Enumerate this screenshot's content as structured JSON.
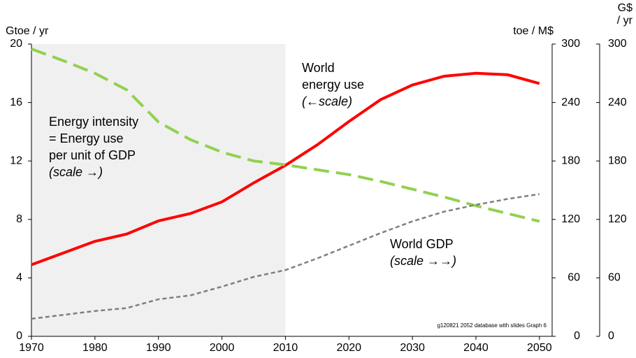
{
  "chart_data": {
    "type": "line",
    "y_label": "Gtoe / yr",
    "y2_label": "toe / M$",
    "y3_label_lines": [
      "G$",
      "/ yr"
    ],
    "x": [
      1970,
      1975,
      1980,
      1985,
      1990,
      1995,
      2000,
      2005,
      2010,
      2015,
      2020,
      2025,
      2030,
      2035,
      2040,
      2045,
      2050
    ],
    "xlim": [
      1970,
      2052
    ],
    "xticks": [
      1970,
      1980,
      1990,
      2000,
      2010,
      2020,
      2030,
      2040,
      2050
    ],
    "ylim": [
      0,
      20
    ],
    "yticks": [
      0,
      4,
      8,
      12,
      16,
      20
    ],
    "y2lim": [
      0,
      300
    ],
    "y2ticks": [
      0,
      60,
      120,
      180,
      240,
      300
    ],
    "y3lim": [
      0,
      300
    ],
    "y3ticks": [
      0,
      60,
      120,
      180,
      240,
      300
    ],
    "shaded_range": [
      1970,
      2010
    ],
    "shade_color": "#f0f0f0",
    "series": [
      {
        "name": "World energy use",
        "axis": "y",
        "color": "#ff0000",
        "style": "solid",
        "values": [
          4.9,
          5.7,
          6.5,
          7.0,
          7.9,
          8.4,
          9.2,
          10.5,
          11.7,
          13.1,
          14.7,
          16.2,
          17.2,
          17.8,
          18.0,
          17.9,
          17.3
        ]
      },
      {
        "name": "Energy intensity",
        "axis": "y2",
        "color": "#92d050",
        "style": "dashed",
        "values": [
          295,
          283,
          270,
          253,
          220,
          202,
          189,
          180,
          176,
          171,
          166,
          159,
          151,
          143,
          134,
          126,
          118
        ]
      },
      {
        "name": "World GDP",
        "axis": "y3",
        "color": "#7f7f7f",
        "style": "dotted",
        "values": [
          18,
          22,
          26,
          29,
          38,
          42,
          51,
          61,
          68,
          80,
          93,
          106,
          118,
          128,
          135,
          141,
          146
        ]
      }
    ],
    "annotations": [
      {
        "lines": [
          "World",
          "energy use"
        ],
        "scale_note": "(←scale)"
      },
      {
        "lines": [
          "Energy intensity",
          "= Energy use",
          "per unit of GDP"
        ],
        "scale_note": "(scale →)"
      },
      {
        "lines": [
          "World GDP"
        ],
        "scale_note": "(scale →→)"
      }
    ],
    "source_note": "g120821 2052 database with slides Graph 6"
  }
}
